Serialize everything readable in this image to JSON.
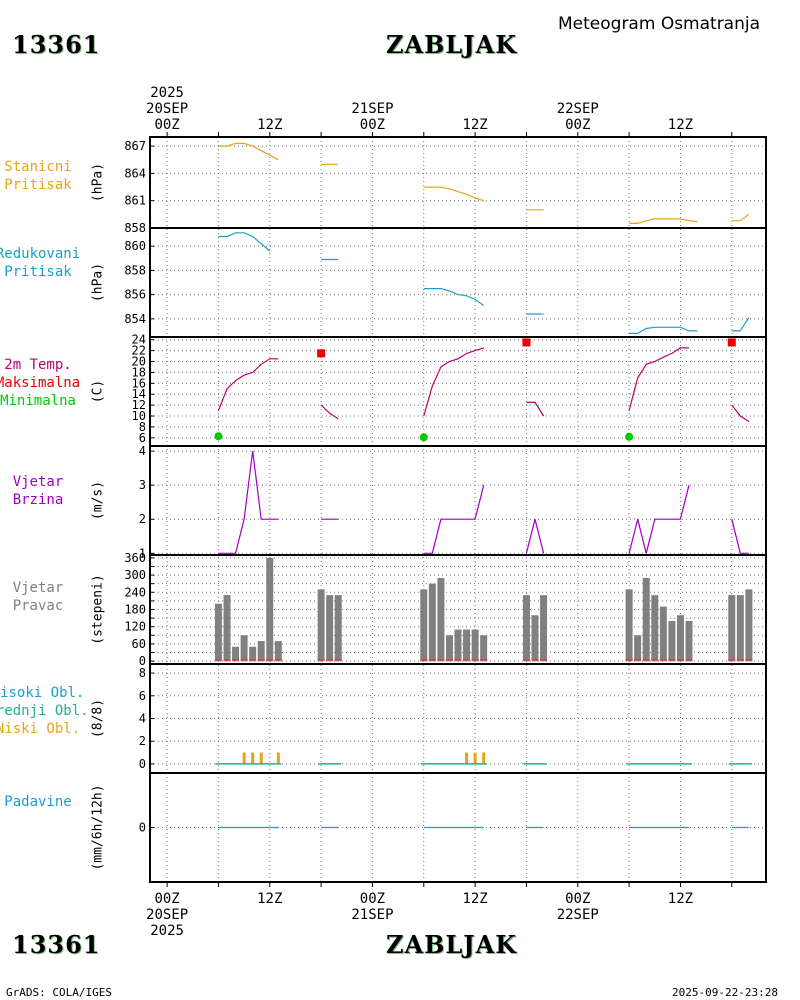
{
  "header": {
    "station_id": "13361",
    "station_name": "ZABLJAK",
    "meteogram_title": "Meteogram Osmatranja"
  },
  "footer": {
    "station_id": "13361",
    "station_name": "ZABLJAK",
    "credit": "GrADS: COLA/IGES",
    "timestamp": "2025-09-22-23:28"
  },
  "colors": {
    "pressure": "#e8a317",
    "reduced_pressure": "#1aa0c8",
    "tmax": "#ee0000",
    "tmin": "#00cc00",
    "temp": "#c0006a",
    "wind": "#a000c0",
    "bar": "#808080",
    "bar_base": "#c85050",
    "cloud_high": "#1aa0c8",
    "cloud_mid": "#20b090",
    "cloud_low": "#e8a317",
    "precip": "#1aa0c8"
  },
  "time_axis": {
    "top_labels": [
      {
        "t": 0,
        "lines": [
          "2025",
          "20SEP",
          "00Z"
        ]
      },
      {
        "t": 12,
        "lines": [
          "12Z"
        ]
      },
      {
        "t": 24,
        "lines": [
          "21SEP",
          "00Z"
        ]
      },
      {
        "t": 36,
        "lines": [
          "12Z"
        ]
      },
      {
        "t": 48,
        "lines": [
          "22SEP",
          "00Z"
        ]
      },
      {
        "t": 60,
        "lines": [
          "12Z"
        ]
      }
    ],
    "bottom_labels": [
      {
        "t": 0,
        "lines": [
          "00Z",
          "20SEP",
          "2025"
        ]
      },
      {
        "t": 12,
        "lines": [
          "12Z"
        ]
      },
      {
        "t": 24,
        "lines": [
          "00Z",
          "21SEP"
        ]
      },
      {
        "t": 36,
        "lines": [
          "12Z"
        ]
      },
      {
        "t": 48,
        "lines": [
          "00Z",
          "22SEP"
        ]
      },
      {
        "t": 60,
        "lines": [
          "12Z"
        ]
      }
    ]
  },
  "chart_data": [
    {
      "type": "line",
      "title_lines": [
        "Stanicni",
        "Pritisak"
      ],
      "ylabel": "(hPa)",
      "ylim": [
        858,
        868
      ],
      "yticks": [
        858,
        861,
        864,
        867
      ],
      "series": [
        {
          "name": "Stanicni Pritisak",
          "color_key": "pressure",
          "segments": [
            [
              [
                6,
                867
              ],
              [
                7,
                867
              ],
              [
                8,
                867.3
              ],
              [
                9,
                867.3
              ],
              [
                10,
                867
              ],
              [
                11,
                866.5
              ],
              [
                12,
                866
              ],
              [
                13,
                865.5
              ]
            ],
            [
              [
                18,
                865
              ],
              [
                19,
                865
              ],
              [
                20,
                865
              ]
            ],
            [
              [
                30,
                862.5
              ],
              [
                31,
                862.5
              ],
              [
                32,
                862.5
              ],
              [
                33,
                862.3
              ],
              [
                34,
                862
              ],
              [
                35,
                861.7
              ],
              [
                36,
                861.3
              ],
              [
                37,
                861
              ]
            ],
            [
              [
                42,
                860
              ],
              [
                43,
                860
              ],
              [
                44,
                860
              ]
            ],
            [
              [
                54,
                858.5
              ],
              [
                55,
                858.5
              ],
              [
                56,
                858.8
              ],
              [
                57,
                859
              ],
              [
                58,
                859
              ],
              [
                59,
                859
              ],
              [
                60,
                859
              ],
              [
                61,
                858.8
              ],
              [
                62,
                858.7
              ]
            ],
            [
              [
                66,
                858.8
              ],
              [
                67,
                858.8
              ],
              [
                68,
                859.5
              ]
            ]
          ]
        }
      ]
    },
    {
      "type": "line",
      "title_lines": [
        "Redukovani",
        "Pritisak"
      ],
      "ylabel": "(hPa)",
      "ylim": [
        852.5,
        861.5
      ],
      "yticks": [
        854,
        856,
        858,
        860
      ],
      "series": [
        {
          "name": "Redukovani Pritisak",
          "color_key": "reduced_pressure",
          "segments": [
            [
              [
                6,
                860.8
              ],
              [
                7,
                860.8
              ],
              [
                8,
                861.1
              ],
              [
                9,
                861.1
              ],
              [
                10,
                860.8
              ],
              [
                11,
                860.2
              ],
              [
                12,
                859.6
              ]
            ],
            [
              [
                18,
                858.9
              ],
              [
                19,
                858.9
              ],
              [
                20,
                858.9
              ]
            ],
            [
              [
                30,
                856.5
              ],
              [
                31,
                856.5
              ],
              [
                32,
                856.5
              ],
              [
                33,
                856.3
              ],
              [
                34,
                856
              ],
              [
                35,
                855.9
              ],
              [
                36,
                855.6
              ],
              [
                37,
                855.1
              ]
            ],
            [
              [
                42,
                854.4
              ],
              [
                43,
                854.4
              ],
              [
                44,
                854.4
              ]
            ],
            [
              [
                54,
                852.8
              ],
              [
                55,
                852.8
              ],
              [
                56,
                853.2
              ],
              [
                57,
                853.3
              ],
              [
                58,
                853.3
              ],
              [
                59,
                853.3
              ],
              [
                60,
                853.3
              ],
              [
                61,
                853
              ],
              [
                62,
                853
              ]
            ],
            [
              [
                66,
                853
              ],
              [
                67,
                853
              ],
              [
                68,
                854.1
              ]
            ]
          ]
        }
      ]
    },
    {
      "type": "line",
      "title_lines": [
        "2m Temp.",
        "Maksimalna",
        "Minimalna"
      ],
      "title_color_keys": [
        "temp",
        "tmax",
        "tmin"
      ],
      "ylabel": "(C)",
      "ylim": [
        4.5,
        24.5
      ],
      "yticks": [
        6,
        8,
        10,
        12,
        14,
        16,
        18,
        20,
        22,
        24
      ],
      "series": [
        {
          "name": "2m Temp.",
          "color_key": "temp",
          "segments": [
            [
              [
                6,
                11
              ],
              [
                7,
                15
              ],
              [
                8,
                16.5
              ],
              [
                9,
                17.5
              ],
              [
                10,
                18
              ],
              [
                11,
                19.5
              ],
              [
                12,
                20.5
              ],
              [
                13,
                20.5
              ]
            ],
            [
              [
                18,
                12
              ],
              [
                19,
                10.5
              ],
              [
                20,
                9.5
              ]
            ],
            [
              [
                30,
                10
              ],
              [
                31,
                15.5
              ],
              [
                32,
                19
              ],
              [
                33,
                20
              ],
              [
                34,
                20.5
              ],
              [
                35,
                21.5
              ],
              [
                36,
                22
              ],
              [
                37,
                22.5
              ]
            ],
            [
              [
                42,
                12.5
              ],
              [
                43,
                12.5
              ],
              [
                44,
                10
              ]
            ],
            [
              [
                54,
                11
              ],
              [
                55,
                17
              ],
              [
                56,
                19.5
              ],
              [
                57,
                20
              ],
              [
                58,
                20.8
              ],
              [
                59,
                21.5
              ],
              [
                60,
                22.5
              ],
              [
                61,
                22.5
              ]
            ],
            [
              [
                66,
                12
              ],
              [
                67,
                10
              ],
              [
                68,
                9
              ]
            ]
          ]
        },
        {
          "name": "Maksimalna",
          "color_key": "tmax",
          "marker": "square",
          "points": [
            [
              18,
              21.5
            ],
            [
              42,
              23.5
            ],
            [
              66,
              23.5
            ]
          ]
        },
        {
          "name": "Minimalna",
          "color_key": "tmin",
          "marker": "circle",
          "points": [
            [
              6,
              6.3
            ],
            [
              30,
              6.1
            ],
            [
              54,
              6.2
            ]
          ]
        }
      ]
    },
    {
      "type": "line",
      "title_lines": [
        "Vjetar",
        "Brzina"
      ],
      "ylabel": "(m/s)",
      "ylim": [
        0.95,
        4.15
      ],
      "yticks": [
        1,
        2,
        3,
        4
      ],
      "series": [
        {
          "name": "Vjetar Brzina",
          "color_key": "wind",
          "segments": [
            [
              [
                6,
                1
              ],
              [
                7,
                1
              ],
              [
                8,
                1
              ],
              [
                9,
                2
              ],
              [
                10,
                4
              ],
              [
                11,
                2
              ],
              [
                12,
                2
              ],
              [
                13,
                2
              ]
            ],
            [
              [
                18,
                2
              ],
              [
                19,
                2
              ],
              [
                20,
                2
              ]
            ],
            [
              [
                30,
                1
              ],
              [
                31,
                1
              ],
              [
                32,
                2
              ],
              [
                33,
                2
              ],
              [
                34,
                2
              ],
              [
                35,
                2
              ],
              [
                36,
                2
              ],
              [
                37,
                3
              ]
            ],
            [
              [
                42,
                1
              ],
              [
                43,
                2
              ],
              [
                44,
                1
              ]
            ],
            [
              [
                54,
                1
              ],
              [
                55,
                2
              ],
              [
                56,
                1
              ],
              [
                57,
                2
              ],
              [
                58,
                2
              ],
              [
                59,
                2
              ],
              [
                60,
                2
              ],
              [
                61,
                3
              ]
            ],
            [
              [
                66,
                2
              ],
              [
                67,
                1
              ],
              [
                68,
                1
              ]
            ]
          ]
        }
      ]
    },
    {
      "type": "bar",
      "title_lines": [
        "Vjetar",
        "Pravac"
      ],
      "ylabel": "(stepeni)",
      "ylim": [
        -10,
        370
      ],
      "yticks": [
        0,
        30,
        60,
        90,
        120,
        150,
        180,
        210,
        240,
        270,
        300,
        330,
        360
      ],
      "ytick_labels": [
        "0",
        "",
        "60",
        "",
        "120",
        "",
        "180",
        "",
        "240",
        "",
        "300",
        "",
        "360"
      ],
      "series": [
        {
          "name": "Vjetar Pravac",
          "color_key": "bar",
          "x": [
            6,
            7,
            8,
            9,
            10,
            11,
            12,
            13,
            18,
            19,
            20,
            30,
            31,
            32,
            33,
            34,
            35,
            36,
            37,
            42,
            43,
            44,
            54,
            55,
            56,
            57,
            58,
            59,
            60,
            61,
            66,
            67,
            68
          ],
          "values": [
            200,
            230,
            50,
            90,
            50,
            70,
            360,
            70,
            250,
            230,
            230,
            250,
            270,
            290,
            90,
            110,
            110,
            110,
            90,
            230,
            160,
            230,
            250,
            90,
            290,
            230,
            190,
            140,
            160,
            140,
            230,
            230,
            250
          ]
        }
      ]
    },
    {
      "type": "bar",
      "title_lines": [
        "Visoki Obl.",
        "Srednji Obl.",
        "Niski Obl."
      ],
      "title_color_keys": [
        "cloud_high",
        "cloud_mid",
        "cloud_low"
      ],
      "ylabel": "(8/8)",
      "ylim": [
        -0.8,
        8.8
      ],
      "yticks": [
        0,
        2,
        4,
        6,
        8
      ],
      "baseline_segments": [
        [
          6,
          13
        ],
        [
          18,
          20
        ],
        [
          30,
          37
        ],
        [
          42,
          44
        ],
        [
          54,
          61
        ],
        [
          66,
          68
        ]
      ],
      "series": [
        {
          "name": "Niski Obl.",
          "color_key": "cloud_low",
          "x": [
            9,
            10,
            11,
            13,
            35,
            36,
            37
          ],
          "values": [
            1,
            1,
            1,
            1,
            1,
            1,
            1
          ]
        }
      ]
    },
    {
      "type": "line",
      "title_lines": [
        "Padavine"
      ],
      "ylabel": "(mm/6h/12h)",
      "ylim": [
        -1,
        1
      ],
      "yticks": [
        0
      ],
      "series": [
        {
          "name": "Padavine",
          "color_key": "precip",
          "segments": [
            [
              [
                6,
                0
              ],
              [
                13,
                0
              ]
            ],
            [
              [
                18,
                0
              ],
              [
                20,
                0
              ]
            ],
            [
              [
                30,
                0
              ],
              [
                37,
                0
              ]
            ],
            [
              [
                42,
                0
              ],
              [
                44,
                0
              ]
            ],
            [
              [
                54,
                0
              ],
              [
                61,
                0
              ]
            ],
            [
              [
                66,
                0
              ],
              [
                68,
                0
              ]
            ]
          ]
        }
      ]
    }
  ]
}
